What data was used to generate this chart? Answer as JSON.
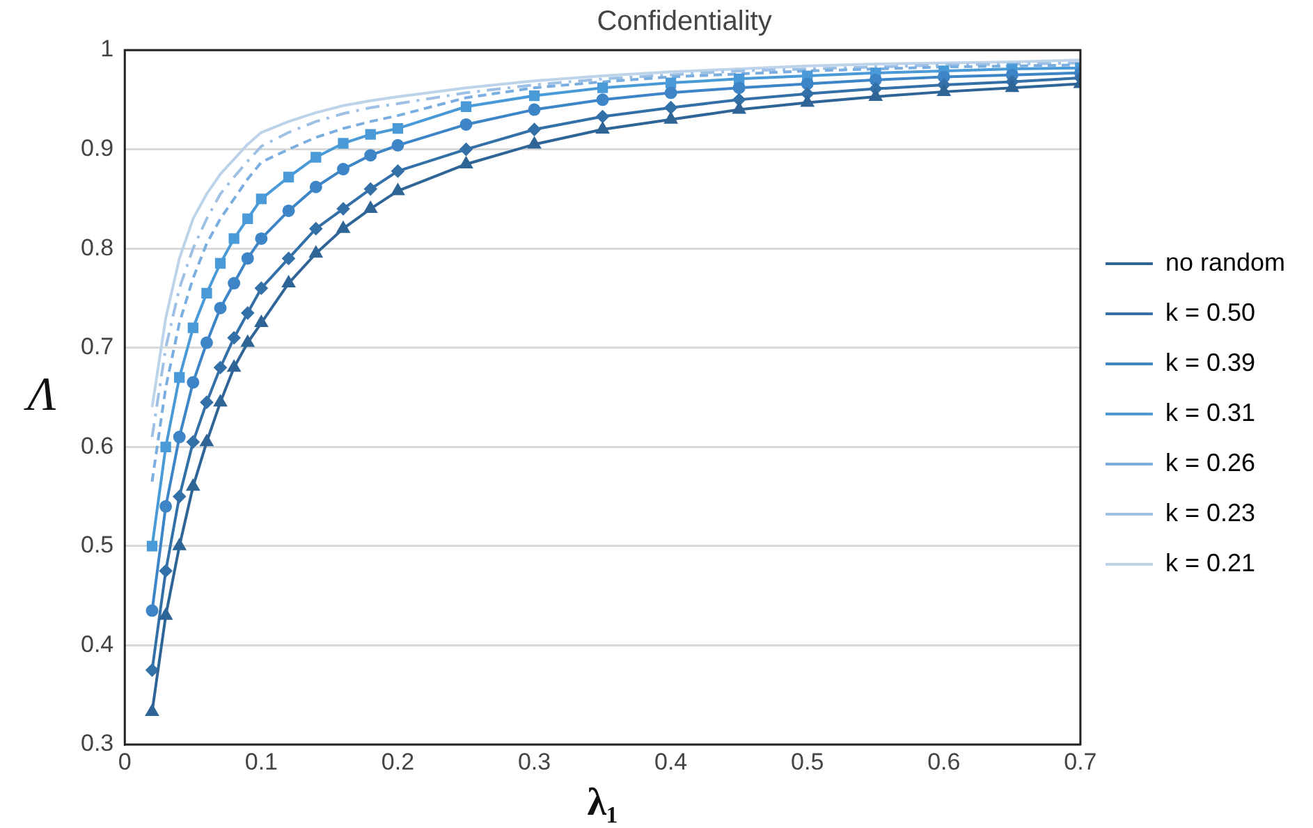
{
  "chart_data": {
    "type": "line",
    "title": "Confidentiality",
    "xlabel": "λ₁",
    "ylabel": "Λ",
    "x": [
      0.02,
      0.03,
      0.04,
      0.05,
      0.06,
      0.07,
      0.08,
      0.09,
      0.1,
      0.12,
      0.14,
      0.16,
      0.18,
      0.2,
      0.25,
      0.3,
      0.35,
      0.4,
      0.45,
      0.5,
      0.55,
      0.6,
      0.65,
      0.7
    ],
    "series": [
      {
        "name": "no random",
        "color": "#2e6496",
        "marker": "triangle",
        "line_style": "solid",
        "values": [
          0.333,
          0.43,
          0.5,
          0.56,
          0.605,
          0.645,
          0.68,
          0.705,
          0.725,
          0.765,
          0.795,
          0.82,
          0.84,
          0.858,
          0.885,
          0.905,
          0.92,
          0.93,
          0.94,
          0.947,
          0.953,
          0.958,
          0.962,
          0.966
        ]
      },
      {
        "name": "k = 0.50",
        "color": "#3470a8",
        "marker": "diamond",
        "line_style": "solid",
        "values": [
          0.375,
          0.475,
          0.55,
          0.605,
          0.645,
          0.68,
          0.71,
          0.735,
          0.76,
          0.79,
          0.82,
          0.84,
          0.86,
          0.878,
          0.9,
          0.92,
          0.933,
          0.942,
          0.95,
          0.956,
          0.961,
          0.965,
          0.968,
          0.972
        ]
      },
      {
        "name": "k = 0.39",
        "color": "#3d85c6",
        "marker": "circle",
        "line_style": "solid",
        "values": [
          0.435,
          0.54,
          0.61,
          0.665,
          0.705,
          0.74,
          0.765,
          0.79,
          0.81,
          0.838,
          0.862,
          0.88,
          0.894,
          0.904,
          0.925,
          0.94,
          0.95,
          0.957,
          0.962,
          0.966,
          0.97,
          0.973,
          0.975,
          0.977
        ]
      },
      {
        "name": "k = 0.31",
        "color": "#4a9ad8",
        "marker": "square",
        "line_style": "solid",
        "values": [
          0.5,
          0.6,
          0.67,
          0.72,
          0.755,
          0.785,
          0.81,
          0.83,
          0.85,
          0.872,
          0.892,
          0.906,
          0.915,
          0.921,
          0.943,
          0.954,
          0.962,
          0.967,
          0.971,
          0.974,
          0.977,
          0.979,
          0.981,
          0.982
        ]
      },
      {
        "name": "k = 0.26",
        "color": "#7aaee0",
        "marker": "none",
        "line_style": "dashed",
        "values": [
          0.565,
          0.66,
          0.725,
          0.77,
          0.805,
          0.83,
          0.85,
          0.87,
          0.887,
          0.9,
          0.912,
          0.921,
          0.928,
          0.934,
          0.952,
          0.962,
          0.968,
          0.973,
          0.976,
          0.979,
          0.981,
          0.983,
          0.984,
          0.985
        ]
      },
      {
        "name": "k = 0.23",
        "color": "#9dc0e4",
        "marker": "none",
        "line_style": "dashdot",
        "values": [
          0.61,
          0.7,
          0.76,
          0.8,
          0.83,
          0.855,
          0.872,
          0.888,
          0.903,
          0.917,
          0.928,
          0.936,
          0.942,
          0.946,
          0.957,
          0.965,
          0.971,
          0.975,
          0.979,
          0.981,
          0.983,
          0.985,
          0.986,
          0.987
        ]
      },
      {
        "name": "k = 0.21",
        "color": "#bcd3ea",
        "marker": "none",
        "line_style": "solid",
        "values": [
          0.64,
          0.73,
          0.79,
          0.83,
          0.855,
          0.875,
          0.89,
          0.905,
          0.917,
          0.928,
          0.937,
          0.944,
          0.949,
          0.953,
          0.962,
          0.969,
          0.974,
          0.978,
          0.981,
          0.984,
          0.986,
          0.987,
          0.988,
          0.99
        ]
      }
    ],
    "xlim": [
      0,
      0.7
    ],
    "xticks": [
      0,
      0.1,
      0.2,
      0.3,
      0.4,
      0.5,
      0.6,
      0.7
    ],
    "ylim": [
      0.3,
      1
    ],
    "yticks": [
      0.3,
      0.4,
      0.5,
      0.6,
      0.7,
      0.8,
      0.9,
      1
    ],
    "grid": "y",
    "legend": "right"
  }
}
